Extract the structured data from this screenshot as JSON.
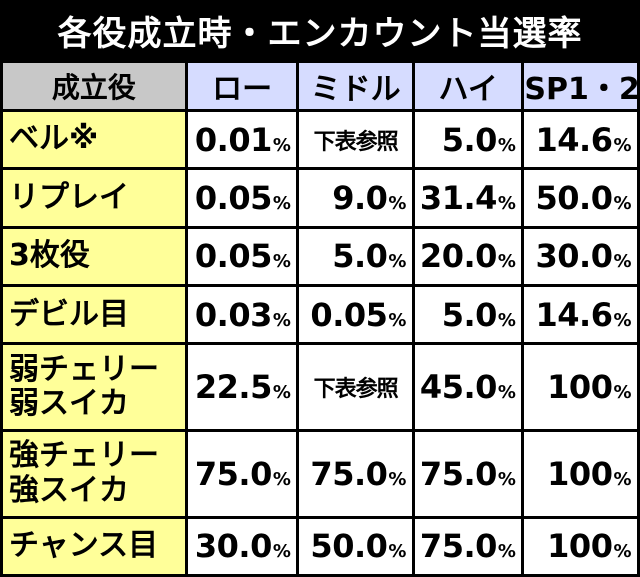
{
  "title": "各役成立時・エンカウント当選率",
  "headers": {
    "role": "成立役",
    "modes": [
      "ロー",
      "ミドル",
      "ハイ",
      "SP1・2"
    ]
  },
  "percent_sign": "%",
  "rows": [
    {
      "role": [
        "ベル※"
      ],
      "values": [
        {
          "v": "0.01",
          "pct": true
        },
        {
          "v": "下表参照",
          "pct": false
        },
        {
          "v": "5.0",
          "pct": true
        },
        {
          "v": "14.6",
          "pct": true
        }
      ]
    },
    {
      "role": [
        "リプレイ"
      ],
      "values": [
        {
          "v": "0.05",
          "pct": true
        },
        {
          "v": "9.0",
          "pct": true
        },
        {
          "v": "31.4",
          "pct": true
        },
        {
          "v": "50.0",
          "pct": true
        }
      ]
    },
    {
      "role": [
        "3枚役"
      ],
      "values": [
        {
          "v": "0.05",
          "pct": true
        },
        {
          "v": "5.0",
          "pct": true
        },
        {
          "v": "20.0",
          "pct": true
        },
        {
          "v": "30.0",
          "pct": true
        }
      ]
    },
    {
      "role": [
        "デビル目"
      ],
      "values": [
        {
          "v": "0.03",
          "pct": true
        },
        {
          "v": "0.05",
          "pct": true
        },
        {
          "v": "5.0",
          "pct": true
        },
        {
          "v": "14.6",
          "pct": true
        }
      ]
    },
    {
      "role": [
        "弱チェリー",
        "弱スイカ"
      ],
      "values": [
        {
          "v": "22.5",
          "pct": true
        },
        {
          "v": "下表参照",
          "pct": false
        },
        {
          "v": "45.0",
          "pct": true
        },
        {
          "v": "100",
          "pct": true
        }
      ]
    },
    {
      "role": [
        "強チェリー",
        "強スイカ"
      ],
      "values": [
        {
          "v": "75.0",
          "pct": true
        },
        {
          "v": "75.0",
          "pct": true
        },
        {
          "v": "75.0",
          "pct": true
        },
        {
          "v": "100",
          "pct": true
        }
      ]
    },
    {
      "role": [
        "チャンス目"
      ],
      "values": [
        {
          "v": "30.0",
          "pct": true
        },
        {
          "v": "50.0",
          "pct": true
        },
        {
          "v": "75.0",
          "pct": true
        },
        {
          "v": "100",
          "pct": true
        }
      ]
    }
  ]
}
